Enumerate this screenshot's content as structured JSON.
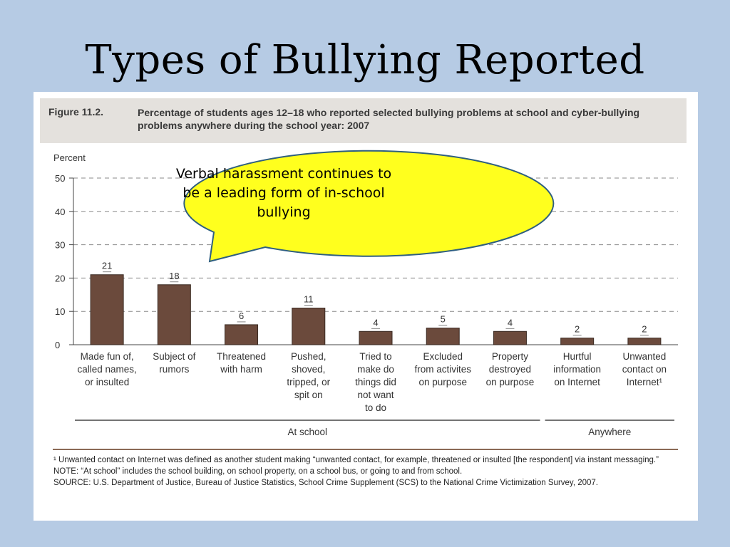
{
  "slide": {
    "title": "Types of Bullying Reported"
  },
  "figure": {
    "label": "Figure 11.2.",
    "caption": "Percentage of students ages 12–18 who reported selected bullying problems at school and cyber-bullying problems anywhere during the school year: 2007"
  },
  "callout": {
    "text": "Verbal harassment continues to be a leading form of in-school bullying"
  },
  "chart_data": {
    "type": "bar",
    "ylabel": "Percent",
    "ylim": [
      0,
      50
    ],
    "yticks": [
      0,
      10,
      20,
      30,
      40,
      50
    ],
    "grid": "dashed horizontal",
    "bar_color": "#6b4a3c",
    "categories": [
      [
        "Made fun of,",
        "called names,",
        "or insulted"
      ],
      [
        "Subject of",
        "rumors"
      ],
      [
        "Threatened",
        "with harm"
      ],
      [
        "Pushed,",
        "shoved,",
        "tripped, or",
        "spit on"
      ],
      [
        "Tried to",
        "make do",
        "things did",
        "not want",
        "to do"
      ],
      [
        "Excluded",
        "from activites",
        "on purpose"
      ],
      [
        "Property",
        "destroyed",
        "on purpose"
      ],
      [
        "Hurtful",
        "information",
        "on Internet"
      ],
      [
        "Unwanted",
        "contact on",
        "Internet¹"
      ]
    ],
    "values": [
      21,
      18,
      6,
      11,
      4,
      5,
      4,
      2,
      2
    ],
    "groups": [
      {
        "label": "At school",
        "count": 7
      },
      {
        "label": "Anywhere",
        "count": 2
      }
    ]
  },
  "footnotes": [
    "¹ Unwanted contact on Internet was defined as another student making “unwanted contact, for example, threatened or insulted [the respondent] via instant messaging.”",
    "NOTE: “At school” includes the school building, on school property, on a school bus, or going to and from school.",
    "SOURCE: U.S. Department of Justice, Bureau of Justice Statistics, School Crime Supplement (SCS) to the National Crime Victimization Survey, 2007."
  ]
}
